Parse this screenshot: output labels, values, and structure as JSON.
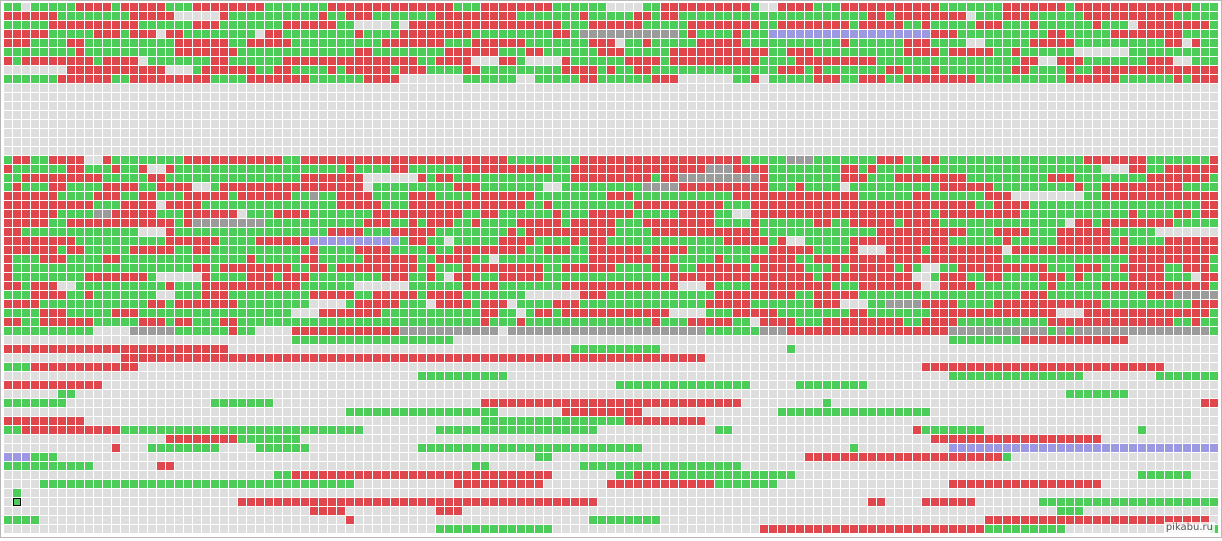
{
  "watermark": "pikabu.ru"
}
